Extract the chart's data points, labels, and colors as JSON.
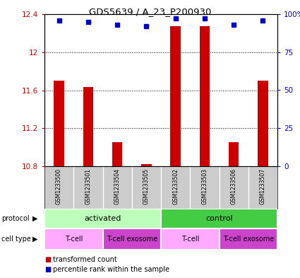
{
  "title": "GDS5639 / A_23_P200930",
  "samples": [
    "GSM1233500",
    "GSM1233501",
    "GSM1233504",
    "GSM1233505",
    "GSM1233502",
    "GSM1233503",
    "GSM1233506",
    "GSM1233507"
  ],
  "transformed_counts": [
    11.7,
    11.63,
    11.05,
    10.82,
    12.27,
    12.27,
    11.05,
    11.7
  ],
  "percentile_ranks": [
    96,
    95,
    93,
    92,
    97,
    97,
    93,
    96
  ],
  "ylim_left": [
    10.8,
    12.4
  ],
  "ylim_right": [
    0,
    100
  ],
  "yticks_left": [
    10.8,
    11.2,
    11.6,
    12.0,
    12.4
  ],
  "yticks_right": [
    0,
    25,
    50,
    75,
    100
  ],
  "ytick_labels_left": [
    "10.8",
    "11.2",
    "11.6",
    "12",
    "12.4"
  ],
  "ytick_labels_right": [
    "0",
    "25",
    "50",
    "75",
    "100%"
  ],
  "bar_color": "#cc0000",
  "dot_color": "#0000cc",
  "protocol_groups": [
    {
      "label": "activated",
      "start": 0,
      "end": 4,
      "color": "#bbffbb"
    },
    {
      "label": "control",
      "start": 4,
      "end": 8,
      "color": "#44cc44"
    }
  ],
  "cell_type_groups": [
    {
      "label": "T-cell",
      "start": 0,
      "end": 2,
      "color": "#ffaaff"
    },
    {
      "label": "T-cell exosome",
      "start": 2,
      "end": 4,
      "color": "#cc44cc"
    },
    {
      "label": "T-cell",
      "start": 4,
      "end": 6,
      "color": "#ffaaff"
    },
    {
      "label": "T-cell exosome",
      "start": 6,
      "end": 8,
      "color": "#cc44cc"
    }
  ],
  "legend_items": [
    {
      "label": "transformed count",
      "color": "#cc0000"
    },
    {
      "label": "percentile rank within the sample",
      "color": "#0000cc"
    }
  ],
  "left_axis_color": "#cc0000",
  "right_axis_color": "#0000cc",
  "background_color": "#ffffff",
  "sample_area_color": "#cccccc",
  "bar_width": 0.35
}
